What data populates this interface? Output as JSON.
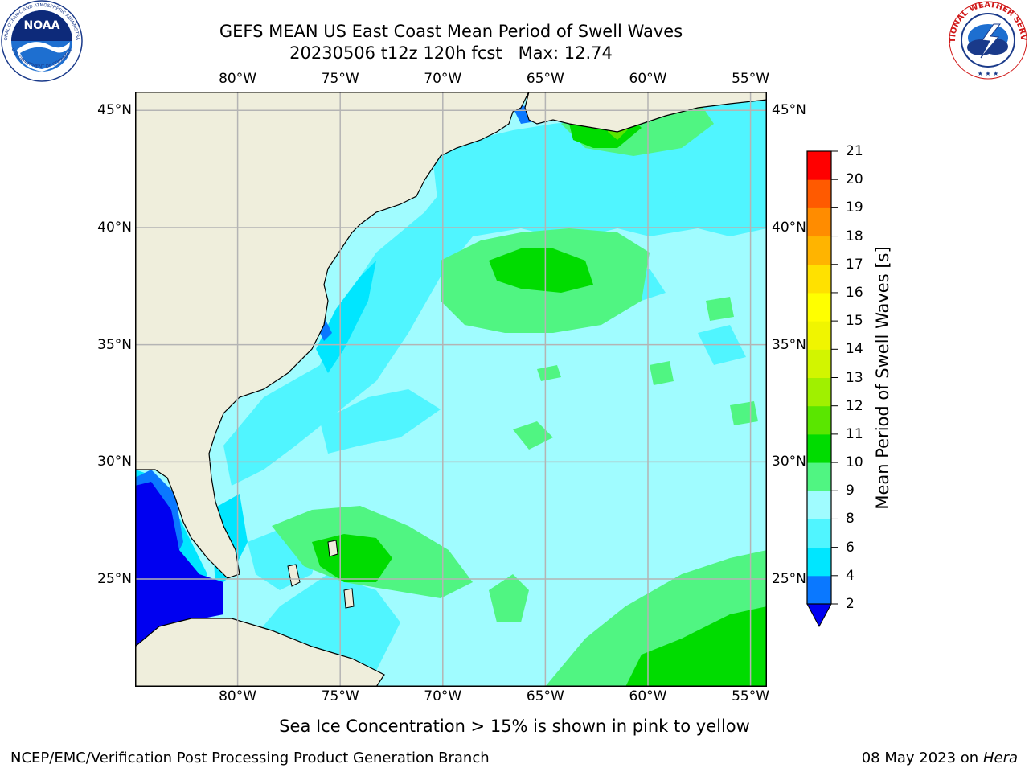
{
  "title": {
    "line1": "GEFS MEAN US East Coast Mean Period of Swell Waves",
    "line2": "20230506 t12z 120h fcst   Max: 12.74"
  },
  "logos": {
    "left": {
      "name": "NOAA",
      "arc_text": "NATIONAL OCEANIC AND ATMOSPHERIC ADMINISTRATION",
      "bottom_text": "U.S. DEPARTMENT OF COMMERCE"
    },
    "right": {
      "name": "NATIONAL WEATHER SERVICE"
    }
  },
  "axes": {
    "lon_labels": [
      "80°W",
      "75°W",
      "70°W",
      "65°W",
      "60°W",
      "55°W"
    ],
    "lat_labels": [
      "45°N",
      "40°N",
      "35°N",
      "30°N",
      "25°N"
    ],
    "lon_values": [
      -80,
      -75,
      -70,
      -65,
      -60,
      -55
    ],
    "lat_values": [
      45,
      40,
      35,
      30,
      25
    ],
    "extent": {
      "lon_min": -85,
      "lon_max": -54.2,
      "lat_min": 20.4,
      "lat_max": 45.8
    }
  },
  "colorbar": {
    "label": "Mean Period of Swell Waves [s]",
    "ticks": [
      "2",
      "4",
      "6",
      "8",
      "9",
      "10",
      "11",
      "12",
      "13",
      "14",
      "15",
      "16",
      "17",
      "18",
      "19",
      "20",
      "21"
    ],
    "colors": [
      "#0a78ff",
      "#00e6ff",
      "#50f5ff",
      "#a0fcff",
      "#50f582",
      "#00dc00",
      "#5ae600",
      "#a0f000",
      "#d2f500",
      "#f0f500",
      "#ffff00",
      "#ffe100",
      "#ffb400",
      "#ff8c00",
      "#ff5a00",
      "#ff2800",
      "#ff0000"
    ],
    "extend_color": "#0000f0"
  },
  "colors": {
    "land": "#efeedc",
    "ocean_base": "#a0fcff",
    "grid": "#b4b4b4"
  },
  "footnote": "Sea Ice Concentration > 15% is shown in pink to yellow",
  "credit": "NCEP/EMC/Verification Post Processing Product Generation Branch",
  "datestamp": {
    "date": "08 May 2023 on",
    "host": "Hera"
  }
}
